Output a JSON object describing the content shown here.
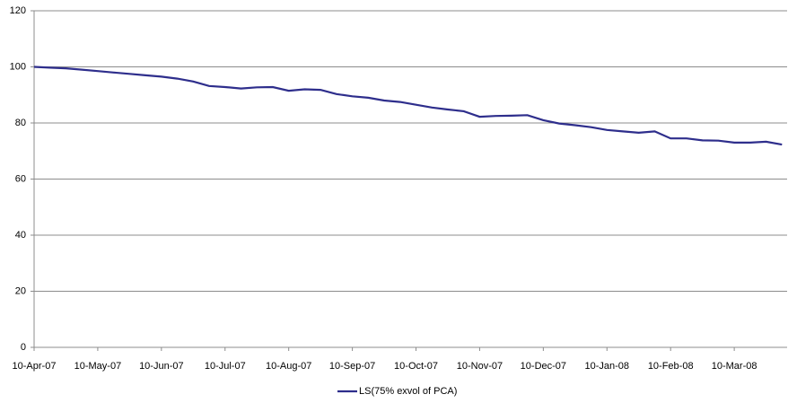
{
  "chart_data": {
    "type": "line",
    "categories": [
      "10-Apr-07",
      null,
      null,
      null,
      "10-May-07",
      null,
      null,
      null,
      "10-Jun-07",
      null,
      null,
      null,
      "10-Jul-07",
      null,
      null,
      null,
      "10-Aug-07",
      null,
      null,
      null,
      "10-Sep-07",
      null,
      null,
      null,
      "10-Oct-07",
      null,
      null,
      null,
      "10-Nov-07",
      null,
      null,
      null,
      "10-Dec-07",
      null,
      null,
      null,
      "10-Jan-08",
      null,
      null,
      null,
      "10-Feb-08",
      null,
      null,
      null,
      "10-Mar-08",
      null,
      null,
      null
    ],
    "series": [
      {
        "name": "LS(75% exvol of PCA)",
        "color": "#2e2e8c",
        "values": [
          100,
          99.7,
          99.5,
          99,
          98.5,
          98,
          97.5,
          97,
          96.5,
          95.8,
          94.8,
          93.2,
          92.8,
          92.3,
          92.7,
          92.8,
          91.5,
          92,
          91.8,
          90.3,
          89.5,
          89,
          88,
          87.5,
          86.5,
          85.5,
          84.8,
          84.2,
          82.2,
          82.5,
          82.6,
          82.8,
          81,
          79.8,
          79.2,
          78.5,
          77.5,
          77,
          76.5,
          77,
          74.5,
          74.5,
          73.8,
          73.7,
          73,
          73,
          73.3,
          72.3
        ]
      }
    ],
    "ylim": [
      0,
      120
    ],
    "yticks": [
      0,
      20,
      40,
      60,
      80,
      100,
      120
    ],
    "grid": true,
    "legend": "bottom"
  }
}
